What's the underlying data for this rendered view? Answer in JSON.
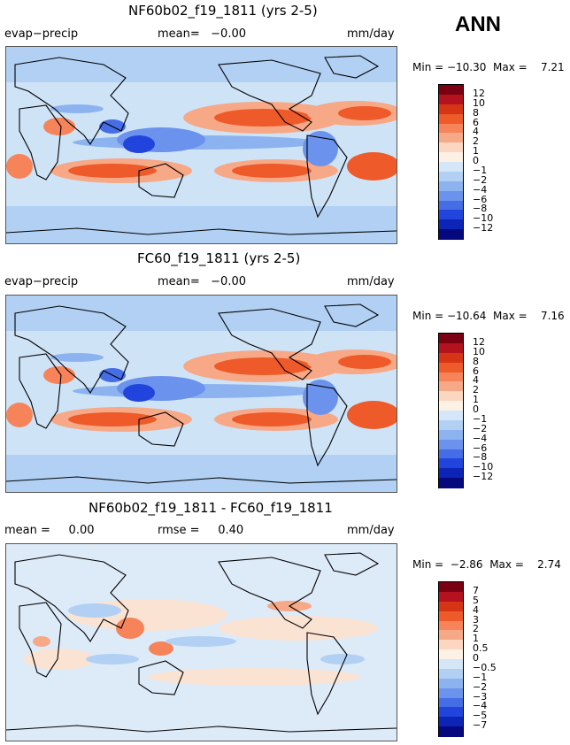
{
  "season": "ANN",
  "palettes": {
    "abs": [
      "#7a0012",
      "#b3121e",
      "#d63515",
      "#ee5a29",
      "#f6835a",
      "#f7a886",
      "#fbd6c1",
      "#fdf0e4",
      "#d4e6f7",
      "#b1d0f3",
      "#8cb3f0",
      "#6b92ec",
      "#456ee6",
      "#2145dc",
      "#0d25b6",
      "#06097e"
    ],
    "diff": [
      "#7a0012",
      "#b3121e",
      "#d63515",
      "#ee5a29",
      "#f6835a",
      "#f7a886",
      "#fbd6c1",
      "#fdf0e4",
      "#d4e6f7",
      "#b1d0f3",
      "#8cb3f0",
      "#6b92ec",
      "#456ee6",
      "#2145dc",
      "#0d25b6",
      "#06097e"
    ]
  },
  "panels": [
    {
      "title": "NF60b02_f19_1811 (yrs 2-5)",
      "left_label": "evap−precip",
      "mid_label": "mean=   −0.00",
      "right_label": "mm/day",
      "min_max": "Min = −10.30  Max =    7.21",
      "colorbar_labels": [
        "12",
        "10",
        "8",
        "6",
        "4",
        "2",
        "1",
        "0",
        "−1",
        "−2",
        "−4",
        "−6",
        "−8",
        "−10",
        "−12"
      ]
    },
    {
      "title": "FC60_f19_1811 (yrs 2-5)",
      "left_label": "evap−precip",
      "mid_label": "mean=   −0.00",
      "right_label": "mm/day",
      "min_max": "Min = −10.64  Max =    7.16",
      "colorbar_labels": [
        "12",
        "10",
        "8",
        "6",
        "4",
        "2",
        "1",
        "0",
        "−1",
        "−2",
        "−4",
        "−6",
        "−8",
        "−10",
        "−12"
      ]
    },
    {
      "title": "NF60b02_f19_1811 - FC60_f19_1811",
      "left_label": "mean =     0.00",
      "mid_label": "rmse =     0.40",
      "right_label": "mm/day",
      "min_max": "Min =  −2.86  Max =    2.74",
      "colorbar_labels": [
        "7",
        "5",
        "4",
        "3",
        "2",
        "1",
        "0.5",
        "0",
        "−0.5",
        "−1",
        "−2",
        "−3",
        "−4",
        "−5",
        "−7"
      ]
    }
  ]
}
